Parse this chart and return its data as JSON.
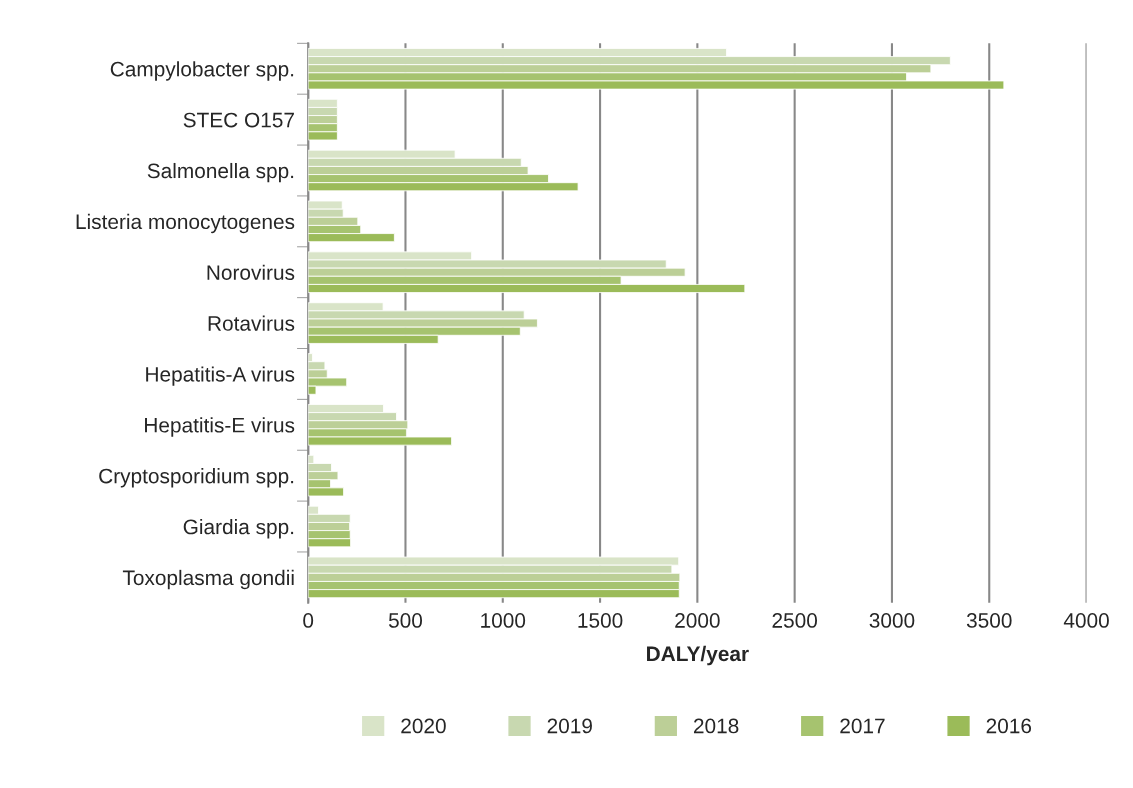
{
  "chart_data": {
    "type": "bar",
    "orientation": "horizontal",
    "xlabel": "DALY/year",
    "categories": [
      "Campylobacter spp.",
      "STEC O157",
      "Salmonella spp.",
      "Listeria monocytogenes",
      "Norovirus",
      "Rotavirus",
      "Hepatitis-A virus",
      "Hepatitis-E virus",
      "Cryptosporidium spp.",
      "Giardia spp.",
      "Toxoplasma gondii"
    ],
    "series": [
      {
        "name": "2020",
        "color": "#d9e4c8",
        "values": [
          2150,
          150,
          755,
          175,
          840,
          385,
          22,
          387,
          29,
          53,
          1904
        ]
      },
      {
        "name": "2019",
        "color": "#c8d8b0",
        "values": [
          3300,
          150,
          1095,
          180,
          1840,
          1110,
          86,
          454,
          120,
          216,
          1869
        ]
      },
      {
        "name": "2018",
        "color": "#bccf97",
        "values": [
          3200,
          150,
          1130,
          255,
          1937,
          1178,
          98,
          512,
          153,
          213,
          1910
        ]
      },
      {
        "name": "2017",
        "color": "#a6c36f",
        "values": [
          3075,
          150,
          1235,
          270,
          1608,
          1090,
          198,
          505,
          115,
          216,
          1907
        ]
      },
      {
        "name": "2016",
        "color": "#9bbb59",
        "values": [
          3575,
          150,
          1387,
          443,
          2244,
          668,
          40,
          737,
          182,
          218,
          1907
        ]
      }
    ],
    "xlim": [
      0,
      4000
    ],
    "xticks": [
      0,
      500,
      1000,
      1500,
      2000,
      2500,
      3000,
      3500,
      4000
    ],
    "grid": "x",
    "legend": "bottom"
  }
}
